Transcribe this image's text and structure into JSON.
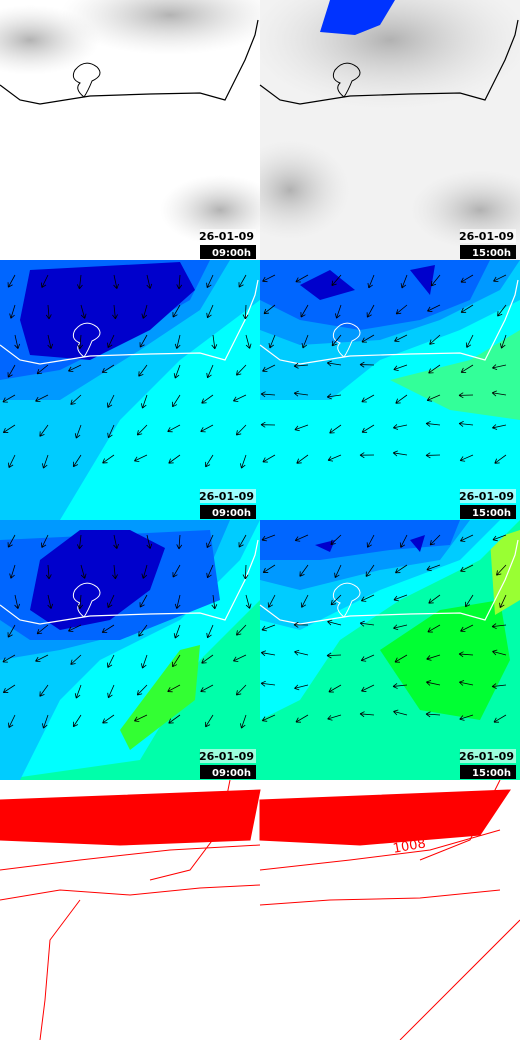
{
  "panels": [
    {
      "date": "26-01-09",
      "time": "09:00h"
    },
    {
      "date": "26-01-09",
      "time": "15:00h"
    },
    {
      "date": "26-01-09",
      "time": "09:00h"
    },
    {
      "date": "26-01-09",
      "time": "15:00h"
    },
    {
      "date": "26-01-09",
      "time": "09:00h"
    },
    {
      "date": "26-01-09",
      "time": "15:00h"
    }
  ],
  "contour_label": "1008"
}
